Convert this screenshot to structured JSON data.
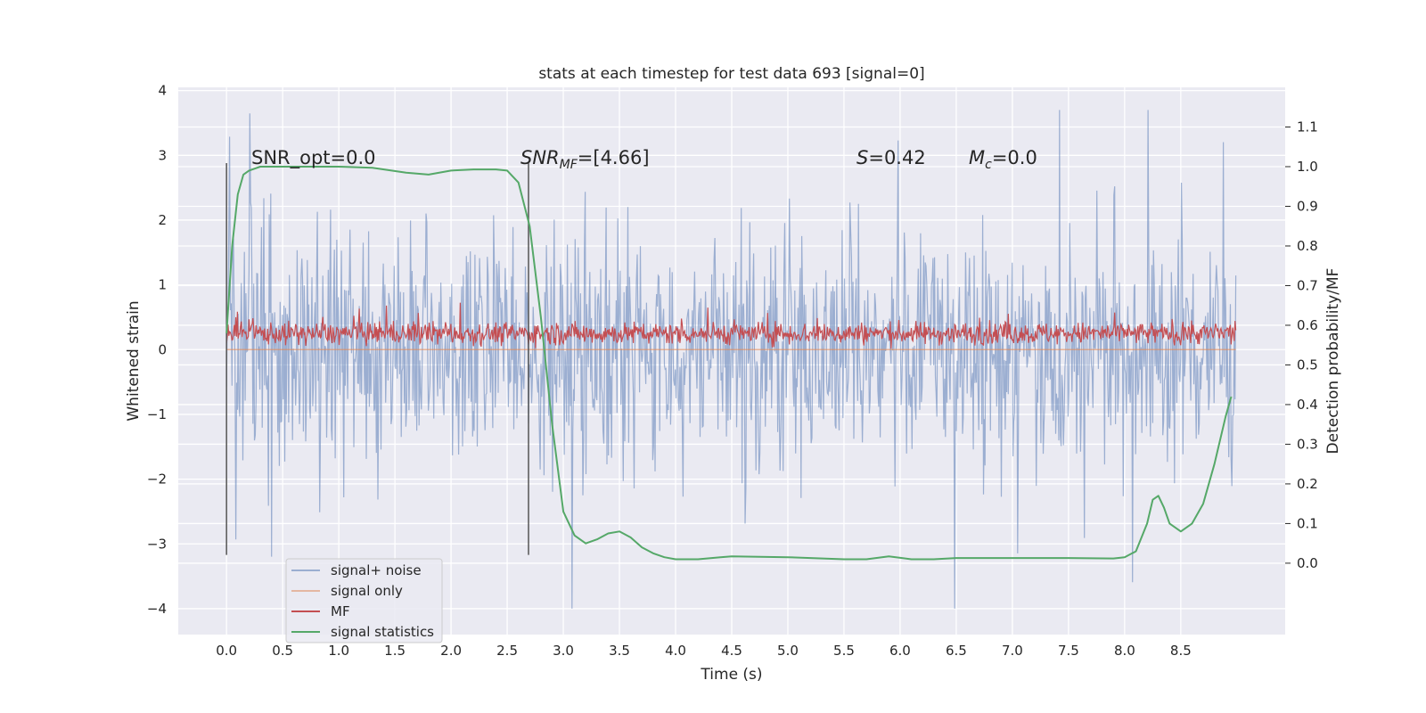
{
  "chart_data": {
    "type": "line",
    "title": "stats at each timestep for test data 693 [signal=0]",
    "xlabel": "Time (s)",
    "ylabel": "Whitened strain",
    "y2label": "Detection probability/MF",
    "xlim": [
      -0.43,
      9.43
    ],
    "ylim": [
      -4.4,
      4.05
    ],
    "y2lim": [
      -0.18,
      1.2
    ],
    "xticks": [
      0.0,
      0.5,
      1.0,
      1.5,
      2.0,
      2.5,
      3.0,
      3.5,
      4.0,
      4.5,
      5.0,
      5.5,
      6.0,
      6.5,
      7.0,
      7.5,
      8.0,
      8.5
    ],
    "xtick_labels": [
      "0.0",
      "0.5",
      "1.0",
      "1.5",
      "2.0",
      "2.5",
      "3.0",
      "3.5",
      "4.0",
      "4.5",
      "5.0",
      "5.5",
      "6.0",
      "6.5",
      "7.0",
      "7.5",
      "8.0",
      "8.5"
    ],
    "yticks": [
      -4,
      -3,
      -2,
      -1,
      0,
      1,
      2,
      3,
      4
    ],
    "ytick_labels": [
      "−4",
      "−3",
      "−2",
      "−1",
      "0",
      "1",
      "2",
      "3",
      "4"
    ],
    "y2ticks": [
      0.0,
      0.1,
      0.2,
      0.3,
      0.4,
      0.5,
      0.6,
      0.7,
      0.8,
      0.9,
      1.0,
      1.1
    ],
    "y2tick_labels": [
      "0.0",
      "0.1",
      "0.2",
      "0.3",
      "0.4",
      "0.5",
      "0.6",
      "0.7",
      "0.8",
      "0.9",
      "1.0",
      "1.1"
    ],
    "grid": true,
    "legend_position": "lower-left",
    "series": [
      {
        "name": "signal+ noise",
        "color": "#4c72b0",
        "axis": "left",
        "style": "dense noise trace",
        "x_range": [
          0.0,
          8.99
        ],
        "typical_range": [
          -1.3,
          1.3
        ],
        "peak_extremes": [
          -4.0,
          3.7
        ]
      },
      {
        "name": "signal only",
        "color": "#dd8452",
        "axis": "left",
        "values_note": "flat at zero (no signal present)",
        "x": [
          0.0,
          8.99
        ],
        "y": [
          0.0,
          0.0
        ]
      },
      {
        "name": "MF",
        "color": "#c44e52",
        "axis": "left",
        "style": "dense trace",
        "x_range": [
          0.0,
          8.99
        ],
        "typical_range": [
          0.0,
          0.55
        ],
        "peak_extremes": [
          -0.05,
          1.0
        ]
      },
      {
        "name": "signal statistics",
        "color": "#55a868",
        "axis": "right",
        "x": [
          0.0,
          0.05,
          0.1,
          0.15,
          0.2,
          0.3,
          0.5,
          1.0,
          1.3,
          1.6,
          1.8,
          2.0,
          2.2,
          2.4,
          2.5,
          2.6,
          2.7,
          2.8,
          2.9,
          3.0,
          3.1,
          3.2,
          3.3,
          3.4,
          3.5,
          3.6,
          3.7,
          3.8,
          3.9,
          4.0,
          4.2,
          4.4,
          4.5,
          5.0,
          5.5,
          5.7,
          5.9,
          6.1,
          6.3,
          6.5,
          7.0,
          7.5,
          7.9,
          8.0,
          8.1,
          8.2,
          8.25,
          8.3,
          8.35,
          8.4,
          8.5,
          8.6,
          8.7,
          8.8,
          8.9,
          8.95
        ],
        "y": [
          0.58,
          0.8,
          0.93,
          0.98,
          0.99,
          1.0,
          1.0,
          1.0,
          0.997,
          0.985,
          0.98,
          0.99,
          0.993,
          0.993,
          0.99,
          0.96,
          0.85,
          0.62,
          0.35,
          0.13,
          0.07,
          0.05,
          0.06,
          0.075,
          0.08,
          0.065,
          0.04,
          0.025,
          0.015,
          0.01,
          0.01,
          0.015,
          0.017,
          0.015,
          0.01,
          0.01,
          0.017,
          0.01,
          0.01,
          0.013,
          0.013,
          0.013,
          0.012,
          0.015,
          0.03,
          0.1,
          0.16,
          0.17,
          0.14,
          0.1,
          0.08,
          0.1,
          0.15,
          0.25,
          0.37,
          0.42
        ]
      }
    ],
    "vertical_lines": [
      {
        "x": 0.0,
        "ymin": -3.17,
        "ymax": 2.88,
        "color": "#555555"
      },
      {
        "x": 2.69,
        "ymin": -3.17,
        "ymax": 2.88,
        "color": "#555555"
      }
    ],
    "annotations": [
      {
        "id": "snr-opt",
        "x": 0.2,
        "y": 2.85,
        "text": "SNR_opt=0.0"
      },
      {
        "id": "snr-mf",
        "x": 2.6,
        "y": 2.85,
        "text_main": "SNR",
        "text_sub": "MF",
        "text_rest": "=[4.66]",
        "italic": true
      },
      {
        "id": "s-value",
        "x": 5.6,
        "y": 2.85,
        "text_main": "S",
        "text_rest": "=0.42"
      },
      {
        "id": "mc-value",
        "x": 6.6,
        "y": 2.85,
        "text_main": "M",
        "text_sub": "c",
        "text_rest": "=0.0"
      }
    ]
  },
  "colors": {
    "axes_background": "#eaeaf2",
    "grid": "#ffffff",
    "noise": "#4c72b0",
    "signal_only": "#dd8452",
    "mf": "#c44e52",
    "statistics": "#55a868"
  }
}
